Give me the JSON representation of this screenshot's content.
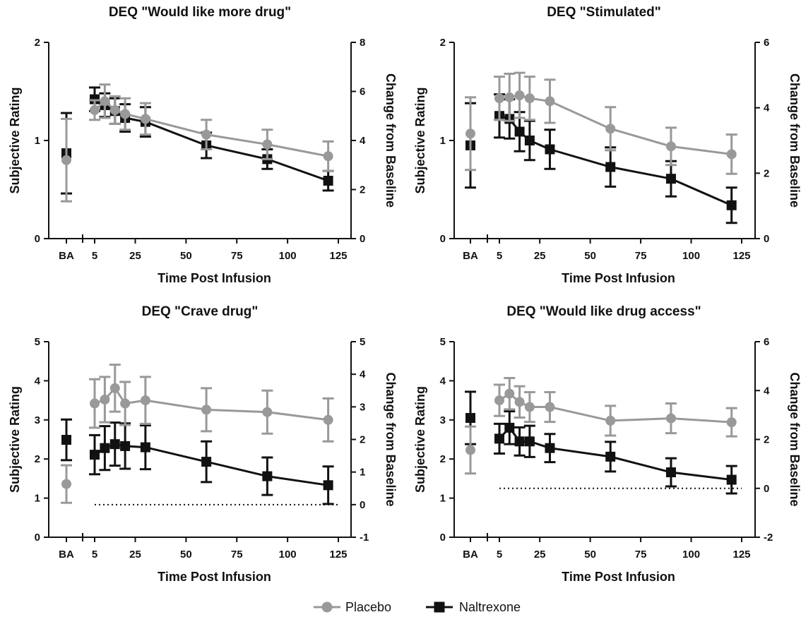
{
  "colors": {
    "placebo": "#999999",
    "naltrexone": "#111111",
    "axis": "#111111"
  },
  "legend": [
    {
      "name": "Placebo",
      "marker": "circle",
      "color": "#999999"
    },
    {
      "name": "Naltrexone",
      "marker": "square",
      "color": "#111111"
    }
  ],
  "chart_data": [
    {
      "type": "line",
      "title": "DEQ \"Would like more drug\"",
      "xlabel": "Time Post Infusion",
      "ylabel": "Subjective  Rating",
      "y2label": "Change from Baseline",
      "baseline_label": "BA",
      "x_ticks": [
        "5",
        "25",
        "50",
        "75",
        "100",
        "125"
      ],
      "xlim": [
        5,
        125
      ],
      "ylim": [
        0,
        2
      ],
      "y_ticks": [
        "0",
        "1",
        "2"
      ],
      "y2lim": [
        0,
        8
      ],
      "y2_ticks": [
        "0",
        "2",
        "4",
        "6",
        "8"
      ],
      "zero_line": false,
      "series": [
        {
          "name": "Placebo",
          "baseline": {
            "y": 0.8,
            "err": 0.42
          },
          "x": [
            5,
            10,
            15,
            20,
            30,
            60,
            90,
            120
          ],
          "y": [
            1.31,
            1.4,
            1.31,
            1.27,
            1.22,
            1.06,
            0.96,
            0.84
          ],
          "err": [
            0.1,
            0.17,
            0.14,
            0.16,
            0.16,
            0.15,
            0.15,
            0.15
          ]
        },
        {
          "name": "Naltrexone",
          "baseline": {
            "y": 0.87,
            "err": 0.41
          },
          "x": [
            5,
            10,
            15,
            20,
            30,
            60,
            90,
            120
          ],
          "y": [
            1.42,
            1.36,
            1.3,
            1.23,
            1.19,
            0.95,
            0.81,
            0.59
          ],
          "err": [
            0.12,
            0.12,
            0.13,
            0.14,
            0.15,
            0.13,
            0.1,
            0.1
          ]
        }
      ]
    },
    {
      "type": "line",
      "title": "DEQ \"Stimulated\"",
      "xlabel": "Time Post Infusion",
      "ylabel": "Subjective  Rating",
      "y2label": "Change from Baseline",
      "baseline_label": "BA",
      "x_ticks": [
        "5",
        "25",
        "50",
        "75",
        "100",
        "125"
      ],
      "xlim": [
        5,
        125
      ],
      "ylim": [
        0,
        2
      ],
      "y_ticks": [
        "0",
        "1",
        "2"
      ],
      "y2lim": [
        0,
        6
      ],
      "y2_ticks": [
        "0",
        "2",
        "4",
        "6"
      ],
      "zero_line": false,
      "series": [
        {
          "name": "Placebo",
          "baseline": {
            "y": 1.07,
            "err": 0.37
          },
          "x": [
            5,
            10,
            15,
            20,
            30,
            60,
            90,
            120
          ],
          "y": [
            1.43,
            1.44,
            1.46,
            1.43,
            1.4,
            1.12,
            0.94,
            0.86
          ],
          "err": [
            0.22,
            0.24,
            0.23,
            0.22,
            0.22,
            0.22,
            0.19,
            0.2
          ]
        },
        {
          "name": "Naltrexone",
          "baseline": {
            "y": 0.95,
            "err": 0.43
          },
          "x": [
            5,
            10,
            15,
            20,
            30,
            60,
            90,
            120
          ],
          "y": [
            1.25,
            1.22,
            1.09,
            1.0,
            0.91,
            0.73,
            0.61,
            0.34
          ],
          "err": [
            0.22,
            0.2,
            0.2,
            0.2,
            0.2,
            0.2,
            0.18,
            0.18
          ]
        }
      ]
    },
    {
      "type": "line",
      "title": "DEQ \"Crave drug\"",
      "xlabel": "Time Post Infusion",
      "ylabel": "Subjective  Rating",
      "y2label": "Change from Baseline",
      "baseline_label": "BA",
      "x_ticks": [
        "5",
        "25",
        "50",
        "75",
        "100",
        "125"
      ],
      "xlim": [
        5,
        125
      ],
      "ylim": [
        0,
        5
      ],
      "y_ticks": [
        "0",
        "1",
        "2",
        "3",
        "4",
        "5"
      ],
      "y2lim": [
        -1,
        5
      ],
      "y2_ticks": [
        "-1",
        "0",
        "1",
        "2",
        "3",
        "4",
        "5"
      ],
      "zero_line": true,
      "series": [
        {
          "name": "Placebo",
          "baseline": {
            "y": 1.36,
            "err": 0.48
          },
          "x": [
            5,
            10,
            15,
            20,
            30,
            60,
            90,
            120
          ],
          "y": [
            3.42,
            3.52,
            3.81,
            3.42,
            3.5,
            3.26,
            3.2,
            3.0
          ],
          "err": [
            0.62,
            0.58,
            0.6,
            0.55,
            0.6,
            0.55,
            0.55,
            0.55
          ]
        },
        {
          "name": "Naltrexone",
          "baseline": {
            "y": 2.49,
            "err": 0.52
          },
          "x": [
            5,
            10,
            15,
            20,
            30,
            60,
            90,
            120
          ],
          "y": [
            2.11,
            2.28,
            2.38,
            2.33,
            2.3,
            1.93,
            1.56,
            1.33
          ],
          "err": [
            0.5,
            0.56,
            0.55,
            0.58,
            0.56,
            0.52,
            0.48,
            0.48
          ]
        }
      ]
    },
    {
      "type": "line",
      "title": "DEQ \"Would like drug access\"",
      "xlabel": "Time Post Infusion",
      "ylabel": "Subjective  Rating",
      "y2label": "Change from Baseline",
      "baseline_label": "BA",
      "x_ticks": [
        "5",
        "25",
        "50",
        "75",
        "100",
        "125"
      ],
      "xlim": [
        5,
        125
      ],
      "ylim": [
        0,
        5
      ],
      "y_ticks": [
        "0",
        "1",
        "2",
        "3",
        "4",
        "5"
      ],
      "y2lim": [
        -2,
        6
      ],
      "y2_ticks": [
        "-2",
        "0",
        "2",
        "4",
        "6"
      ],
      "zero_line": true,
      "series": [
        {
          "name": "Placebo",
          "baseline": {
            "y": 2.23,
            "err": 0.6
          },
          "x": [
            5,
            10,
            15,
            20,
            30,
            60,
            90,
            120
          ],
          "y": [
            3.5,
            3.67,
            3.46,
            3.33,
            3.33,
            2.98,
            3.04,
            2.94
          ],
          "err": [
            0.4,
            0.4,
            0.4,
            0.38,
            0.38,
            0.38,
            0.38,
            0.36
          ]
        },
        {
          "name": "Naltrexone",
          "baseline": {
            "y": 3.05,
            "err": 0.67
          },
          "x": [
            5,
            10,
            15,
            20,
            30,
            60,
            90,
            120
          ],
          "y": [
            2.52,
            2.8,
            2.45,
            2.45,
            2.28,
            2.06,
            1.66,
            1.47
          ],
          "err": [
            0.38,
            0.42,
            0.36,
            0.4,
            0.36,
            0.38,
            0.36,
            0.35
          ]
        }
      ]
    }
  ]
}
